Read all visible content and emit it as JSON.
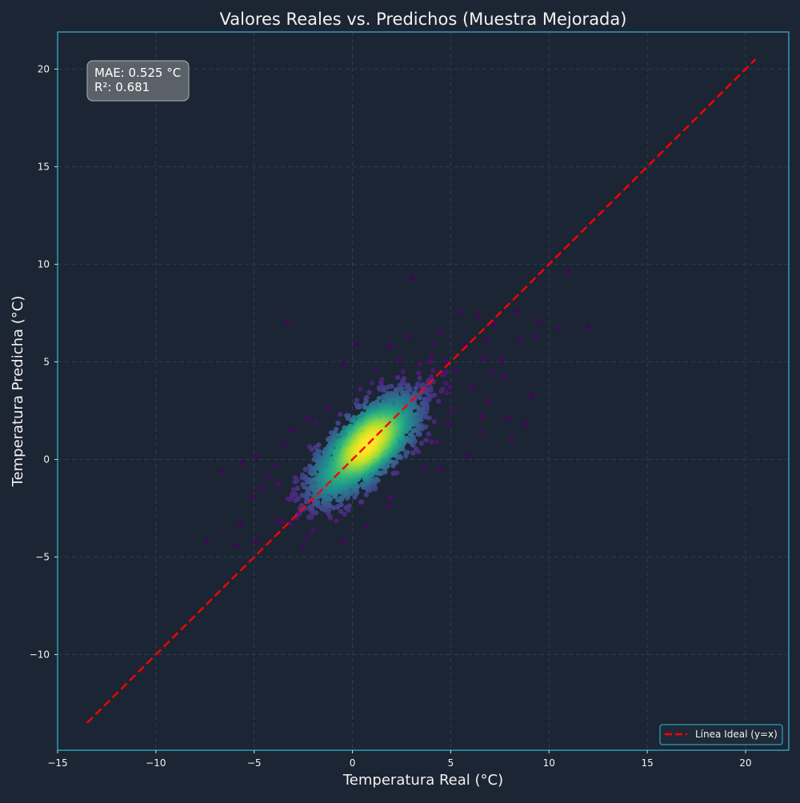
{
  "chart_data": {
    "type": "scatter",
    "title": "Valores Reales vs. Predichos (Muestra Mejorada)",
    "xlabel": "Temperatura Real (°C)",
    "ylabel": "Temperatura Predicha (°C)",
    "xlim": [
      -15,
      22.2
    ],
    "ylim": [
      -14.9,
      21.9
    ],
    "xticks": [
      -15,
      -10,
      -5,
      0,
      5,
      10,
      15,
      20
    ],
    "yticks": [
      -10,
      -5,
      0,
      5,
      10,
      15,
      20
    ],
    "xtick_labels": [
      "−15",
      "−10",
      "−5",
      "0",
      "5",
      "10",
      "15",
      "20"
    ],
    "ytick_labels": [
      "−10",
      "−5",
      "0",
      "5",
      "10",
      "15",
      "20"
    ],
    "grid": true,
    "legend": {
      "location": "lower-right",
      "entries": [
        "Línea Ideal (y=x)"
      ]
    },
    "metrics": {
      "mae_text": "MAE: 0.525 °C",
      "r2_text": "R²: 0.681"
    },
    "ideal_line": {
      "name": "Línea Ideal (y=x)",
      "from": [
        -13.5,
        -13.5
      ],
      "to": [
        20.5,
        20.5
      ],
      "color": "#ff0000",
      "style": "dashed"
    },
    "points": {
      "colormap": "viridis",
      "color_encodes": "point density",
      "outliers": [
        [
          3.0,
          9.3
        ],
        [
          -3.3,
          7.1
        ],
        [
          11.0,
          9.6
        ],
        [
          12.0,
          6.8
        ],
        [
          10.5,
          6.7
        ],
        [
          9.1,
          3.3
        ],
        [
          8.8,
          1.8
        ],
        [
          8.1,
          1.1
        ],
        [
          -7.4,
          -4.2
        ],
        [
          -5.9,
          -4.4
        ],
        [
          -6.6,
          -0.6
        ],
        [
          -5.7,
          -3.3
        ],
        [
          -0.5,
          -4.2
        ],
        [
          1.8,
          -2.4
        ],
        [
          -0.5,
          4.9
        ],
        [
          -5.6,
          -0.2
        ],
        [
          -4.9,
          0.1
        ],
        [
          -5.1,
          -1.9
        ],
        [
          -4.6,
          -1.5
        ],
        [
          -3.5,
          0.8
        ],
        [
          -3.1,
          1.5
        ],
        [
          6.4,
          7.4
        ],
        [
          5.5,
          7.5
        ],
        [
          8.4,
          7.6
        ],
        [
          9.5,
          7.1
        ],
        [
          7.2,
          6.9
        ],
        [
          6.8,
          6.1
        ],
        [
          7.7,
          4.2
        ],
        [
          7.1,
          4.5
        ],
        [
          7.9,
          2.1
        ],
        [
          6.6,
          2.2
        ],
        [
          6.5,
          1.4
        ],
        [
          5.9,
          0.2
        ],
        [
          4.1,
          5.9
        ],
        [
          3.4,
          4.9
        ],
        [
          2.4,
          5.1
        ],
        [
          1.9,
          5.8
        ],
        [
          5.7,
          5.9
        ],
        [
          2.9,
          6.3
        ],
        [
          -1.2,
          2.6
        ],
        [
          -1.9,
          1.9
        ],
        [
          -2.3,
          2.1
        ],
        [
          -3.8,
          -1.3
        ],
        [
          -2.9,
          -2.1
        ],
        [
          -1.4,
          -2.6
        ],
        [
          -2.4,
          -0.9
        ],
        [
          -0.2,
          -2.6
        ],
        [
          1.1,
          -1.4
        ],
        [
          3.6,
          -0.4
        ],
        [
          4.5,
          -0.5
        ],
        [
          4.3,
          0.9
        ],
        [
          5.1,
          2.5
        ],
        [
          6.1,
          3.7
        ],
        [
          7.6,
          5.1
        ],
        [
          8.5,
          6.1
        ],
        [
          9.3,
          6.3
        ],
        [
          6.7,
          5.2
        ],
        [
          -4.3,
          -0.9
        ],
        [
          -3.9,
          -0.3
        ],
        [
          -2.6,
          -2.6
        ],
        [
          -1.5,
          -0.1
        ],
        [
          0.4,
          3.6
        ],
        [
          1.5,
          4.1
        ],
        [
          2.6,
          3.2
        ],
        [
          4.8,
          3.4
        ],
        [
          5.3,
          4.6
        ],
        [
          3.8,
          2.7
        ],
        [
          6.9,
          3.0
        ],
        [
          1.2,
          -1.0
        ],
        [
          0.2,
          5.9
        ]
      ],
      "core": {
        "center": [
          0.7,
          0.7
        ],
        "sd_major": 1.85,
        "sd_minor": 0.72,
        "angle_deg": 44,
        "sample_count": 2400
      }
    }
  }
}
